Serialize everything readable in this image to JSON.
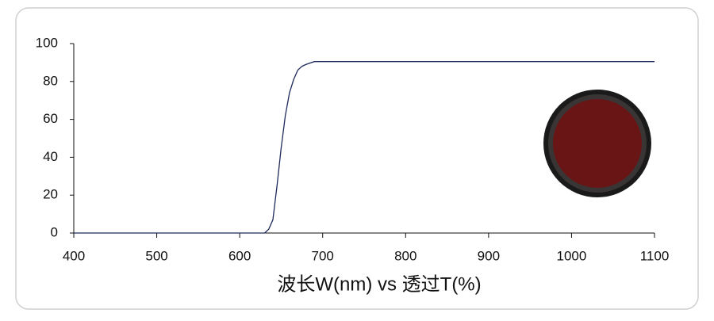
{
  "chart_data": {
    "type": "line",
    "x_label": "波长W(nm) vs 透过T(%)",
    "x": [
      400,
      620,
      630,
      635,
      640,
      645,
      650,
      655,
      660,
      665,
      670,
      675,
      680,
      690,
      700,
      800,
      900,
      1000,
      1100
    ],
    "values": [
      0,
      0,
      0,
      2,
      7,
      25,
      45,
      62,
      74,
      81,
      86,
      88,
      89,
      90.5,
      90.5,
      90.5,
      90.5,
      90.5,
      90.5
    ],
    "color": "#1f2a5c",
    "xlim": [
      400,
      1100
    ],
    "xticks": [
      400,
      500,
      600,
      700,
      800,
      900,
      1000,
      1100
    ],
    "ylim": [
      0,
      100
    ],
    "yticks": [
      0,
      20,
      40,
      60,
      80,
      100
    ]
  }
}
